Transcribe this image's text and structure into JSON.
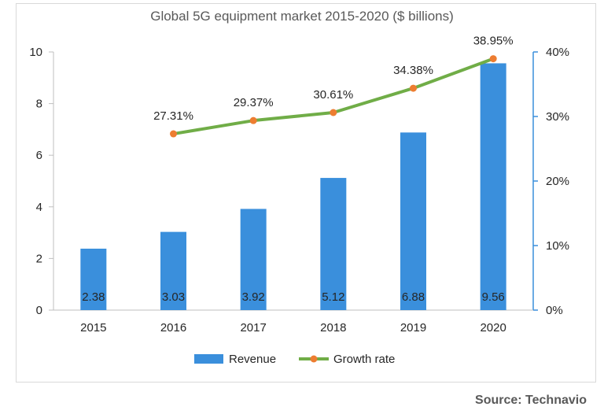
{
  "chart_data": {
    "type": "bar",
    "title": "Global 5G equipment market 2015-2020 ($ billions)",
    "categories": [
      "2015",
      "2016",
      "2017",
      "2018",
      "2019",
      "2020"
    ],
    "series": [
      {
        "name": "Revenue",
        "type": "bar",
        "axis": "left",
        "values": [
          2.38,
          3.03,
          3.92,
          5.12,
          6.88,
          9.56
        ],
        "labels": [
          "2.38",
          "3.03",
          "3.92",
          "5.12",
          "6.88",
          "9.56"
        ],
        "color": "#3a8fdc"
      },
      {
        "name": "Growth rate",
        "type": "line",
        "axis": "right",
        "values": [
          null,
          27.31,
          29.37,
          30.61,
          34.38,
          38.95
        ],
        "labels": [
          "",
          "27.31%",
          "29.37%",
          "30.61%",
          "34.38%",
          "38.95%"
        ],
        "color": "#70ad47",
        "marker_color": "#ed7d31"
      }
    ],
    "y_left": {
      "ylim": [
        0,
        10
      ],
      "ticks": [
        "0",
        "2",
        "4",
        "6",
        "8",
        "10"
      ],
      "tick_values": [
        0,
        2,
        4,
        6,
        8,
        10
      ]
    },
    "y_right": {
      "ylim": [
        0,
        40
      ],
      "ticks": [
        "0%",
        "10%",
        "20%",
        "30%",
        "40%"
      ],
      "tick_values": [
        0,
        10,
        20,
        30,
        40
      ],
      "color": "#3a8fdc"
    },
    "grid": false,
    "legend_position": "bottom"
  },
  "source": "Source: Technavio"
}
